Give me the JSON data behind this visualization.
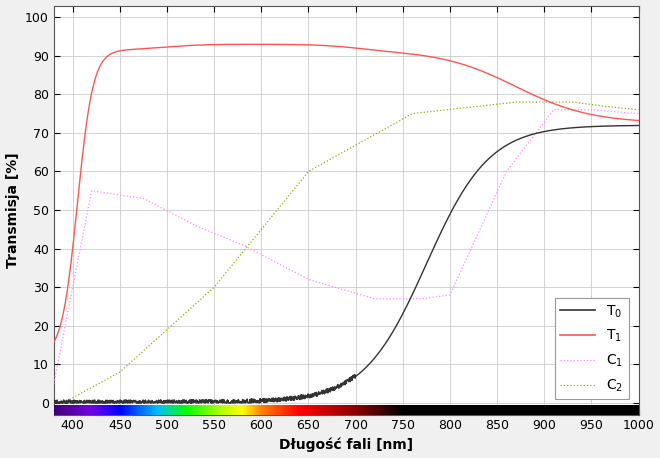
{
  "xlim": [
    380,
    1000
  ],
  "ylim": [
    -3,
    103
  ],
  "xticks": [
    400,
    450,
    500,
    550,
    600,
    650,
    700,
    750,
    800,
    850,
    900,
    950,
    1000
  ],
  "yticks": [
    0,
    10,
    20,
    30,
    40,
    50,
    60,
    70,
    80,
    90,
    100
  ],
  "xlabel": "Długość fali [nm]",
  "ylabel": "Transmisja [%]",
  "T0_color": "#333333",
  "T1_color": "#ff5555",
  "C1_color": "#ff88ff",
  "C2_color": "#99aa00",
  "background_color": "#ffffff",
  "fig_color": "#f0f0f0",
  "grid_color": "#cccccc"
}
